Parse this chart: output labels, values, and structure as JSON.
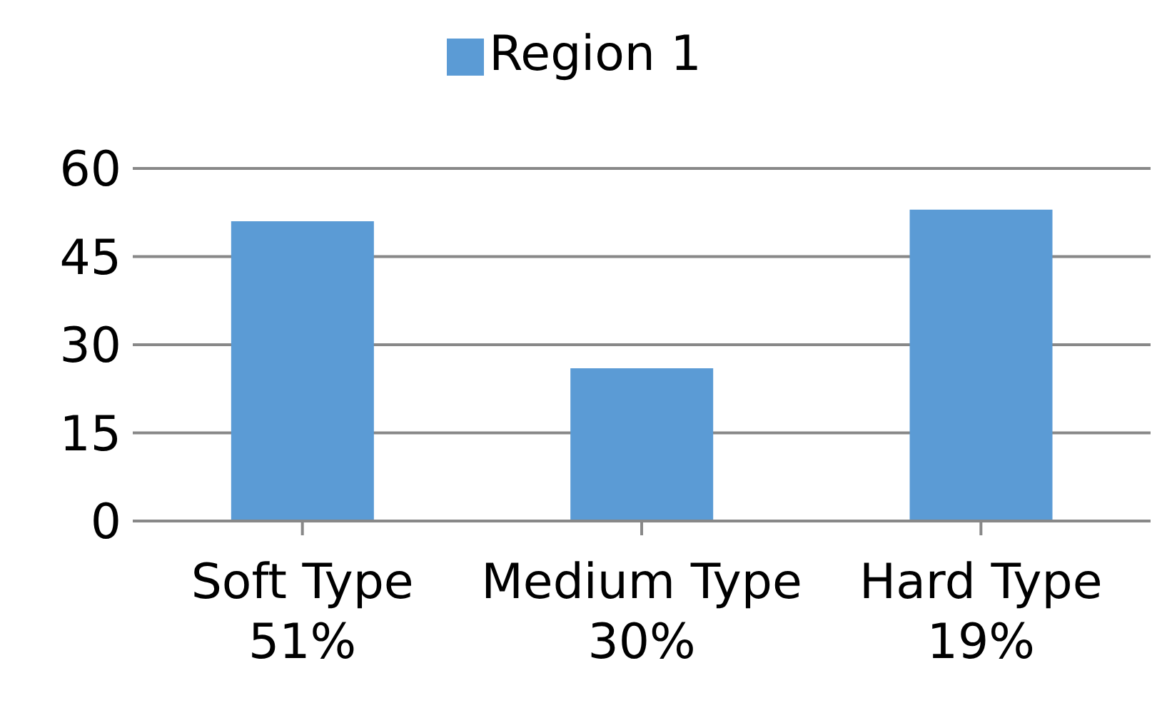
{
  "chart_data": {
    "type": "bar",
    "categories": [
      "Soft Type\n51%",
      "Medium Type\n30%",
      "Hard Type\n19%"
    ],
    "series": [
      {
        "name": "Region 1",
        "color": "#5b9bd5",
        "values": [
          51,
          26,
          53
        ]
      }
    ],
    "ylim": [
      0,
      60
    ],
    "yticks": [
      0,
      15,
      30,
      45,
      60
    ],
    "grid": "y",
    "legend": "top"
  }
}
